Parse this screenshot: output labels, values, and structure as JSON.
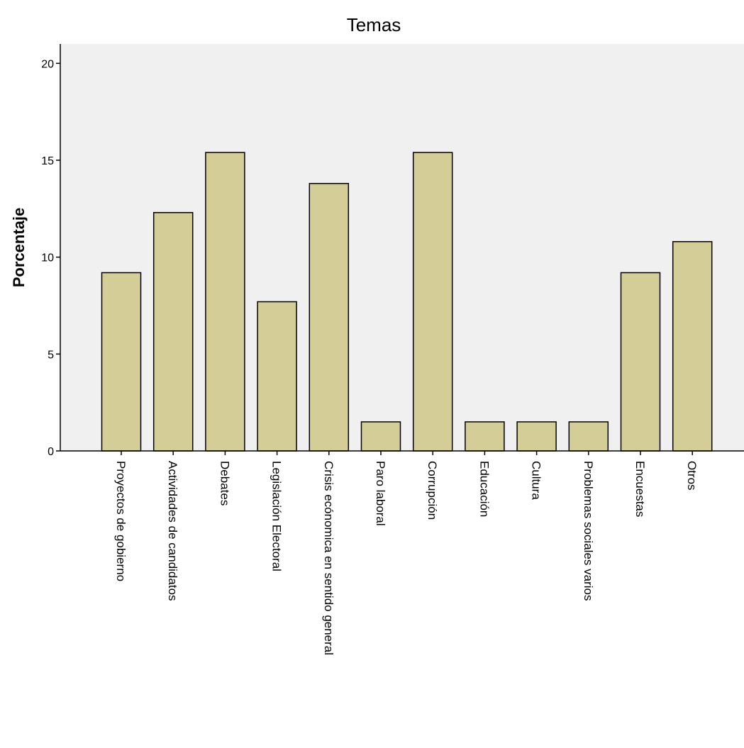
{
  "chart_data": {
    "type": "bar",
    "title": "Temas",
    "xlabel": "",
    "ylabel": "Porcentaje",
    "ylim": [
      0,
      21
    ],
    "yticks": [
      "0",
      "5",
      "10",
      "15",
      "20"
    ],
    "categories": [
      "Proyectos de gobierno",
      "Actividades de candidatos",
      "Debates",
      "Legislación Electoral",
      "Crisis ecónomica en sentido general",
      "Paro laboral",
      "Corrupción",
      "Educación",
      "Cultura",
      "Problemas sociales varios",
      "Encuestas",
      "Otros"
    ],
    "values": [
      9.2,
      12.3,
      15.4,
      7.7,
      13.8,
      1.5,
      15.4,
      1.5,
      1.5,
      1.5,
      9.2,
      10.8
    ],
    "grid": false,
    "colors": {
      "plot_background": "#f0f0f0",
      "bar_fill": "#d4cd98",
      "bar_edge": "#000000"
    }
  }
}
